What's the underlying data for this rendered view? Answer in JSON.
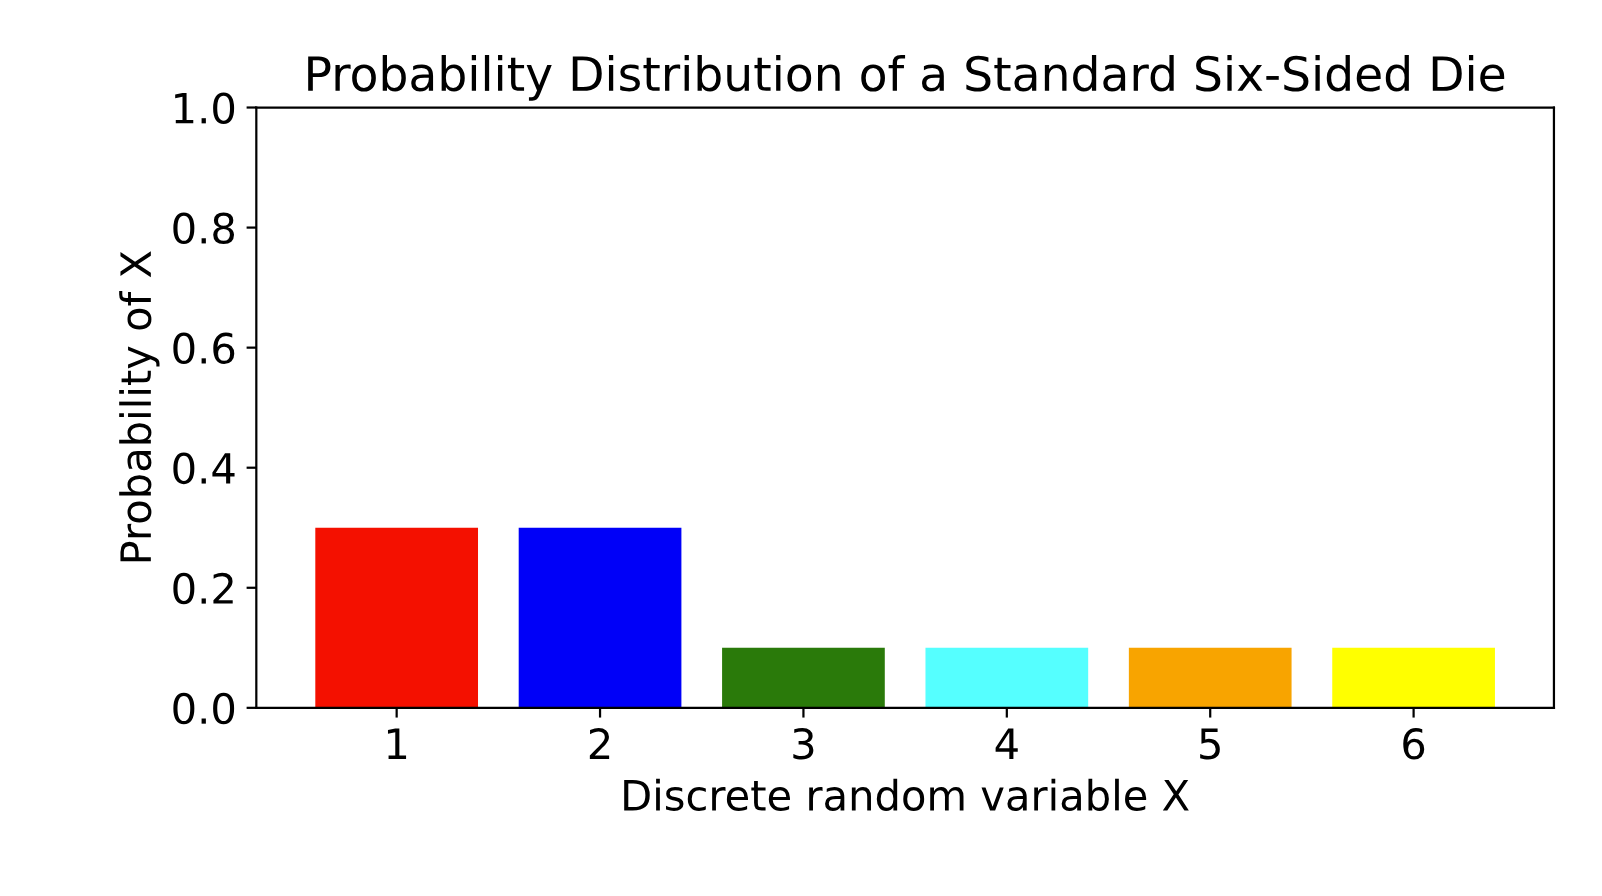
{
  "chart_data": {
    "type": "bar",
    "title": "Probability Distribution of a Standard Six-Sided Die",
    "xlabel": "Discrete random variable X",
    "ylabel": "Probability of X",
    "categories": [
      "1",
      "2",
      "3",
      "4",
      "5",
      "6"
    ],
    "values": [
      0.3,
      0.3,
      0.1,
      0.1,
      0.1,
      0.1
    ],
    "colors": [
      "#f41000",
      "#0000f8",
      "#2a7a0a",
      "#55ffff",
      "#f8a400",
      "#ffff00"
    ],
    "ylim": [
      0,
      1.0
    ],
    "yticks": [
      {
        "value": 0,
        "label": "0.0"
      },
      {
        "value": 0.2,
        "label": "0.2"
      },
      {
        "value": 0.4,
        "label": "0.4"
      },
      {
        "value": 0.6,
        "label": "0.6"
      },
      {
        "value": 0.8,
        "label": "0.8"
      },
      {
        "value": 1.0,
        "label": "1.0"
      }
    ],
    "grid": false
  }
}
